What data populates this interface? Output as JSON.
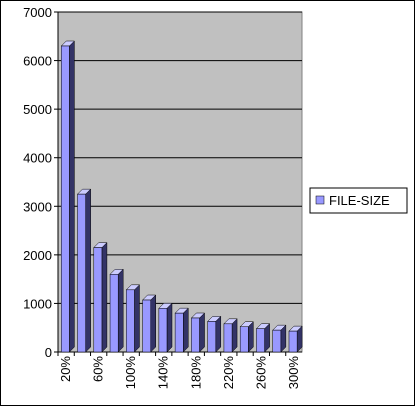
{
  "chart_data": {
    "type": "bar",
    "categories": [
      "20%",
      null,
      "60%",
      null,
      "100%",
      null,
      "140%",
      null,
      "180%",
      null,
      "220%",
      null,
      "260%",
      null,
      "300%"
    ],
    "series": [
      {
        "name": "FILE-SIZE",
        "color": "#9999ff",
        "values": [
          6300,
          3250,
          2150,
          1600,
          1280,
          1070,
          900,
          800,
          700,
          630,
          580,
          520,
          480,
          450,
          430
        ]
      }
    ],
    "ylim": [
      0,
      7000
    ],
    "yticks": [
      0,
      1000,
      2000,
      3000,
      4000,
      5000,
      6000,
      7000
    ],
    "grid": true,
    "legend": "right"
  }
}
